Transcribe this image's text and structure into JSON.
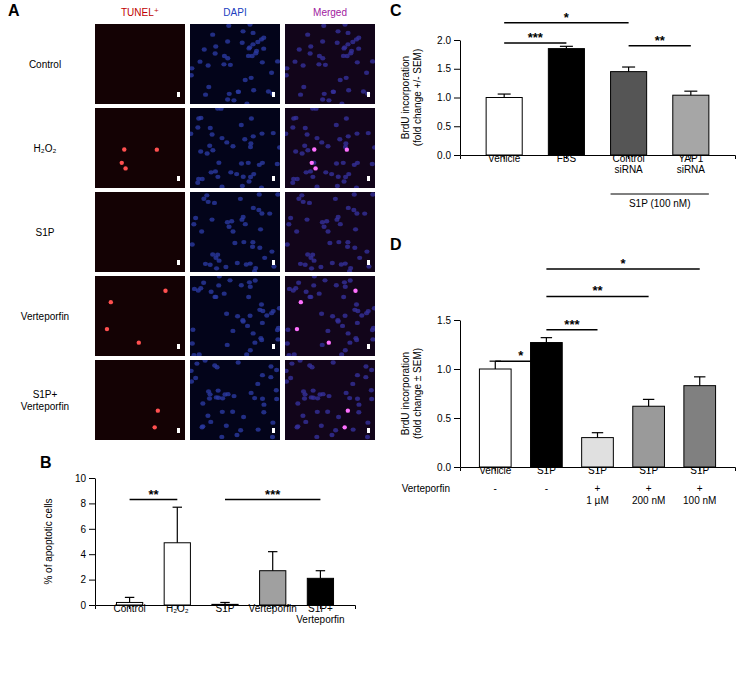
{
  "image_grid": {
    "title": "A",
    "columns": [
      "TUNEL⁺",
      "DAPI",
      "Merged"
    ],
    "rows": [
      "Control",
      "H₂O₂",
      "S1P",
      "Verteporfin",
      "S1P+\nVerteporfin"
    ]
  },
  "chart_data": [
    {
      "type": "bar",
      "title": "B",
      "categories": [
        "Control",
        "H₂O₂",
        "S1P",
        "Verteporfin",
        "S1P+\nVerteporfin"
      ],
      "values": [
        0.2,
        4.9,
        0.05,
        2.7,
        2.1
      ],
      "errors": [
        0.4,
        2.8,
        0.15,
        1.5,
        0.6
      ],
      "colors": [
        "#ffffff",
        "#ffffff",
        "#ffffff",
        "#a0a0a0",
        "#000000"
      ],
      "ylabel": "% of apoptotic cells",
      "ylim": [
        0,
        10
      ],
      "yticks": [
        0,
        2,
        4,
        6,
        8,
        10
      ],
      "annotations": [
        {
          "text": "**",
          "from": 0,
          "to": 1,
          "y": 8.3
        },
        {
          "text": "***",
          "from": 2,
          "to": 4,
          "y": 8.3
        }
      ]
    },
    {
      "type": "bar",
      "title": "C",
      "categories": [
        "Vehicle",
        "FBS",
        "Control\nsiRNA",
        "YAP1\nsiRNA"
      ],
      "values": [
        1.0,
        1.85,
        1.45,
        1.04
      ],
      "errors": [
        0.06,
        0.04,
        0.08,
        0.07
      ],
      "colors": [
        "#ffffff",
        "#000000",
        "#555555",
        "#a6a6a6"
      ],
      "ylabel": "BrdU incorporation\n(fold change +/- SEM)",
      "ylim": [
        0,
        2.0
      ],
      "yticks": [
        {
          "value": 0,
          "label": "0.0"
        },
        {
          "value": 0.5,
          "label": "0.5"
        },
        {
          "value": 1.0,
          "label": "1.0"
        },
        {
          "value": 1.5,
          "label": "1.5"
        },
        {
          "value": 2.0,
          "label": "2.0"
        }
      ],
      "annotations": [
        {
          "text": "***",
          "from": 0,
          "to": 1,
          "y": 1.95
        },
        {
          "text": "*",
          "from": 0,
          "to": 2,
          "y": 2.3
        },
        {
          "text": "**",
          "from": 2,
          "to": 3,
          "y": 1.9
        }
      ],
      "group_label": {
        "text": "S1P (100 nM)",
        "from": 2,
        "to": 3
      }
    },
    {
      "type": "bar",
      "title": "D",
      "categories": [
        "Vehicle",
        "S1P",
        "S1P",
        "S1P",
        "S1P"
      ],
      "values": [
        1.0,
        1.27,
        0.3,
        0.62,
        0.83
      ],
      "errors": [
        0.08,
        0.05,
        0.05,
        0.07,
        0.09
      ],
      "colors": [
        "#ffffff",
        "#000000",
        "#e0e0e0",
        "#9a9a9a",
        "#808080"
      ],
      "ylabel": "BrdU incorporation\n(fold change ± SEM)",
      "ylim": [
        0,
        1.5
      ],
      "yticks": [
        {
          "value": 0,
          "label": "0.0"
        },
        {
          "value": 0.5,
          "label": "0.5"
        },
        {
          "value": 1.0,
          "label": "1.0"
        },
        {
          "value": 1.5,
          "label": "1.5"
        }
      ],
      "annotations": [
        {
          "text": "*",
          "from": 0,
          "to": 1,
          "y": 1.08
        },
        {
          "text": "***",
          "from": 1,
          "to": 2,
          "y": 1.4
        },
        {
          "text": "**",
          "from": 1,
          "to": 3,
          "y": 1.74
        },
        {
          "text": "*",
          "from": 1,
          "to": 4,
          "y": 2.02
        }
      ],
      "sub_labels": {
        "title": "Verteporfin",
        "labels": [
          "-",
          "-",
          "+\n1 µM",
          "+\n200 nM",
          "+\n100 nM"
        ]
      }
    }
  ]
}
